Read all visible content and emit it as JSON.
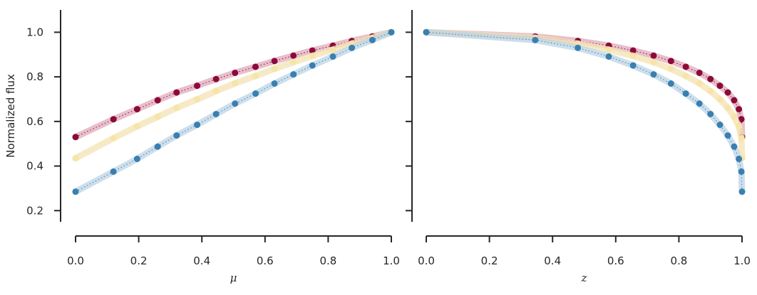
{
  "chart_data": [
    {
      "type": "line",
      "xlabel": "μ",
      "ylabel": "Normalized flux",
      "xlim": [
        0.0,
        1.0
      ],
      "ylim": [
        0.15,
        1.1
      ],
      "xticks": [
        "0.0",
        "0.2",
        "0.4",
        "0.6",
        "0.8",
        "1.0"
      ],
      "yticks": [
        "0.2",
        "0.4",
        "0.6",
        "0.8",
        "1.0"
      ],
      "x": [
        0.0,
        0.12,
        0.195,
        0.26,
        0.32,
        0.385,
        0.445,
        0.505,
        0.57,
        0.63,
        0.69,
        0.75,
        0.815,
        0.875,
        0.94,
        1.0
      ],
      "series": [
        {
          "color": "#8b0a3c",
          "band": "#e0a9b8",
          "values": [
            0.53,
            0.61,
            0.655,
            0.695,
            0.73,
            0.76,
            0.79,
            0.818,
            0.845,
            0.871,
            0.895,
            0.918,
            0.94,
            0.961,
            0.981,
            1.0
          ]
        },
        {
          "color": "#f7e4a8",
          "band": "#f3e3b4",
          "values": [
            0.435,
            0.525,
            0.578,
            0.621,
            0.661,
            0.699,
            0.736,
            0.771,
            0.804,
            0.836,
            0.866,
            0.894,
            0.922,
            0.949,
            0.975,
            1.0
          ]
        },
        {
          "color": "#3a7fb0",
          "band": "#bcd4e6",
          "values": [
            0.285,
            0.375,
            0.432,
            0.487,
            0.537,
            0.585,
            0.633,
            0.68,
            0.725,
            0.77,
            0.811,
            0.851,
            0.891,
            0.93,
            0.965,
            1.0
          ]
        }
      ],
      "grid": false
    },
    {
      "type": "line",
      "xlabel": "z",
      "ylabel": "",
      "xlim": [
        0.0,
        1.0
      ],
      "ylim": [
        0.15,
        1.1
      ],
      "xticks": [
        "0.0",
        "0.2",
        "0.4",
        "0.6",
        "0.8",
        "1.0"
      ],
      "yticks": [],
      "x": [
        0.0,
        0.345,
        0.48,
        0.578,
        0.655,
        0.72,
        0.775,
        0.822,
        0.865,
        0.9,
        0.93,
        0.955,
        0.975,
        0.99,
        0.998,
        1.0
      ],
      "series": [
        {
          "color": "#8b0a3c",
          "band": "#e0a9b8",
          "values": [
            1.0,
            0.981,
            0.961,
            0.94,
            0.918,
            0.895,
            0.871,
            0.845,
            0.818,
            0.79,
            0.76,
            0.73,
            0.695,
            0.655,
            0.61,
            0.53
          ]
        },
        {
          "color": "#f7e4a8",
          "band": "#f3e3b4",
          "values": [
            1.0,
            0.975,
            0.949,
            0.922,
            0.894,
            0.866,
            0.836,
            0.804,
            0.771,
            0.736,
            0.699,
            0.661,
            0.621,
            0.578,
            0.525,
            0.435
          ]
        },
        {
          "color": "#3a7fb0",
          "band": "#bcd4e6",
          "values": [
            1.0,
            0.965,
            0.93,
            0.891,
            0.851,
            0.811,
            0.77,
            0.725,
            0.68,
            0.633,
            0.585,
            0.537,
            0.487,
            0.432,
            0.375,
            0.285
          ]
        }
      ],
      "grid": false
    }
  ]
}
